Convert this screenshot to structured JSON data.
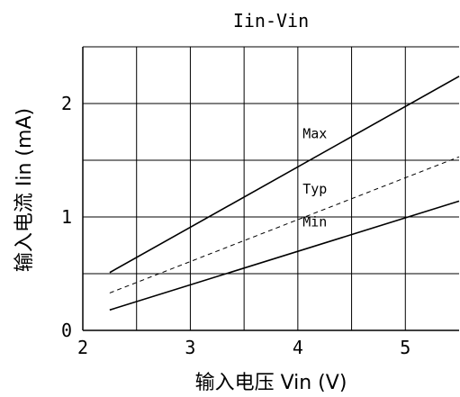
{
  "chart_data": {
    "type": "line",
    "title": "Iin-Vin",
    "xlabel": "输入电压 Vin (V)",
    "ylabel": "输入电流 Iin (mA)",
    "xlim": [
      2,
      5.5
    ],
    "ylim": [
      0,
      2.5
    ],
    "xticks": [
      2,
      3,
      4,
      5
    ],
    "yticks": [
      0,
      1,
      2
    ],
    "grid": true,
    "series": [
      {
        "name": "Max",
        "style": "solid",
        "color": "#000000",
        "x": [
          2.25,
          5.5
        ],
        "y": [
          0.51,
          2.24
        ]
      },
      {
        "name": "Typ",
        "style": "dashed",
        "color": "#000000",
        "x": [
          2.25,
          5.5
        ],
        "y": [
          0.33,
          1.53
        ]
      },
      {
        "name": "Min",
        "style": "solid",
        "color": "#000000",
        "x": [
          2.25,
          5.5
        ],
        "y": [
          0.18,
          1.14
        ]
      }
    ]
  }
}
